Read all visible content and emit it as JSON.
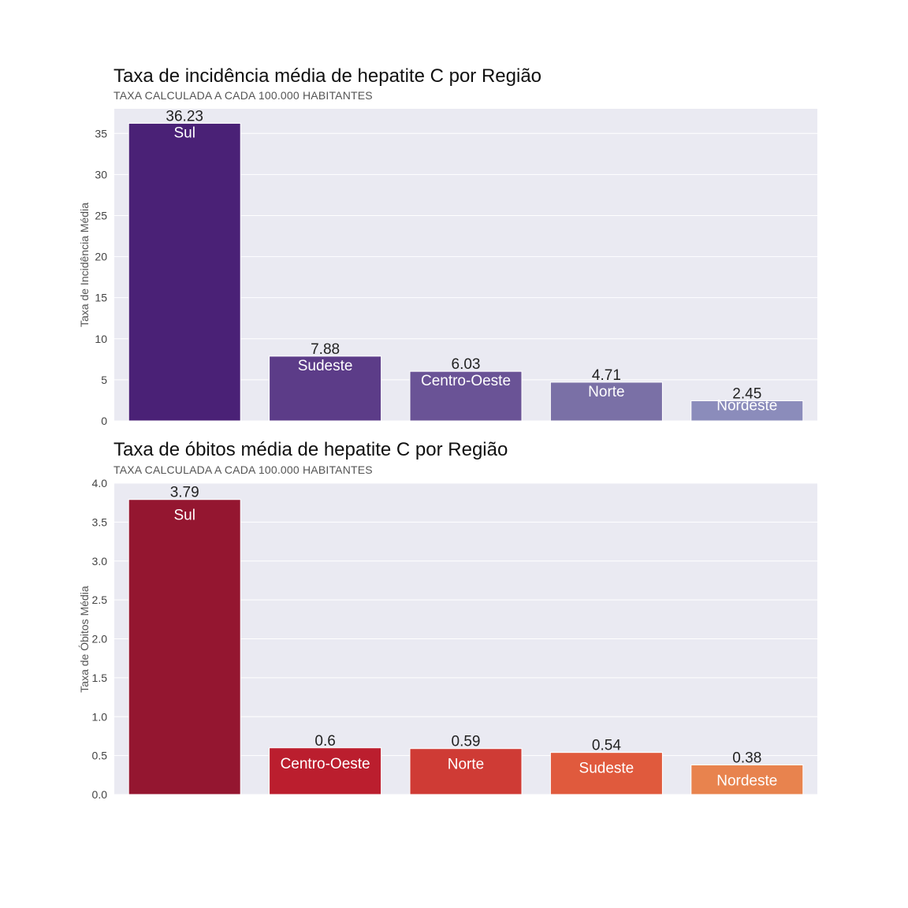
{
  "chart_data": [
    {
      "type": "bar",
      "title": "Taxa de incidência média de hepatite C por Região",
      "subtitle": "TAXA CALCULADA A CADA 100.000 HABITANTES",
      "ylabel": "Taxa de Incidência Média",
      "xlabel": "",
      "ylim": [
        0,
        38
      ],
      "yticks": [
        "0",
        "5",
        "10",
        "15",
        "20",
        "25",
        "30",
        "35"
      ],
      "ytick_values": [
        0,
        5,
        10,
        15,
        20,
        25,
        30,
        35
      ],
      "grid": true,
      "categories": [
        "Sul",
        "Sudeste",
        "Centro-Oeste",
        "Norte",
        "Nordeste"
      ],
      "values": [
        36.23,
        7.88,
        6.03,
        4.71,
        2.45
      ],
      "value_labels": [
        "36.23",
        "7.88",
        "6.03",
        "4.71",
        "2.45"
      ],
      "colors": [
        "#4a2176",
        "#5c3c88",
        "#6a5396",
        "#7a70a6",
        "#8b8cbb"
      ]
    },
    {
      "type": "bar",
      "title": "Taxa de óbitos média de hepatite C por Região",
      "subtitle": "TAXA CALCULADA A CADA 100.000 HABITANTES",
      "ylabel": "Taxa de Óbitos Média",
      "xlabel": "",
      "ylim": [
        0,
        4.0
      ],
      "yticks": [
        "0.0",
        "0.5",
        "1.0",
        "1.5",
        "2.0",
        "2.5",
        "3.0",
        "3.5",
        "4.0"
      ],
      "ytick_values": [
        0,
        0.5,
        1.0,
        1.5,
        2.0,
        2.5,
        3.0,
        3.5,
        4.0
      ],
      "grid": true,
      "categories": [
        "Sul",
        "Centro-Oeste",
        "Norte",
        "Sudeste",
        "Nordeste"
      ],
      "values": [
        3.79,
        0.6,
        0.59,
        0.54,
        0.38
      ],
      "value_labels": [
        "3.79",
        "0.6",
        "0.59",
        "0.54",
        "0.38"
      ],
      "colors": [
        "#941630",
        "#bb1e2e",
        "#cf3b35",
        "#e05a3d",
        "#e8834e"
      ]
    }
  ]
}
